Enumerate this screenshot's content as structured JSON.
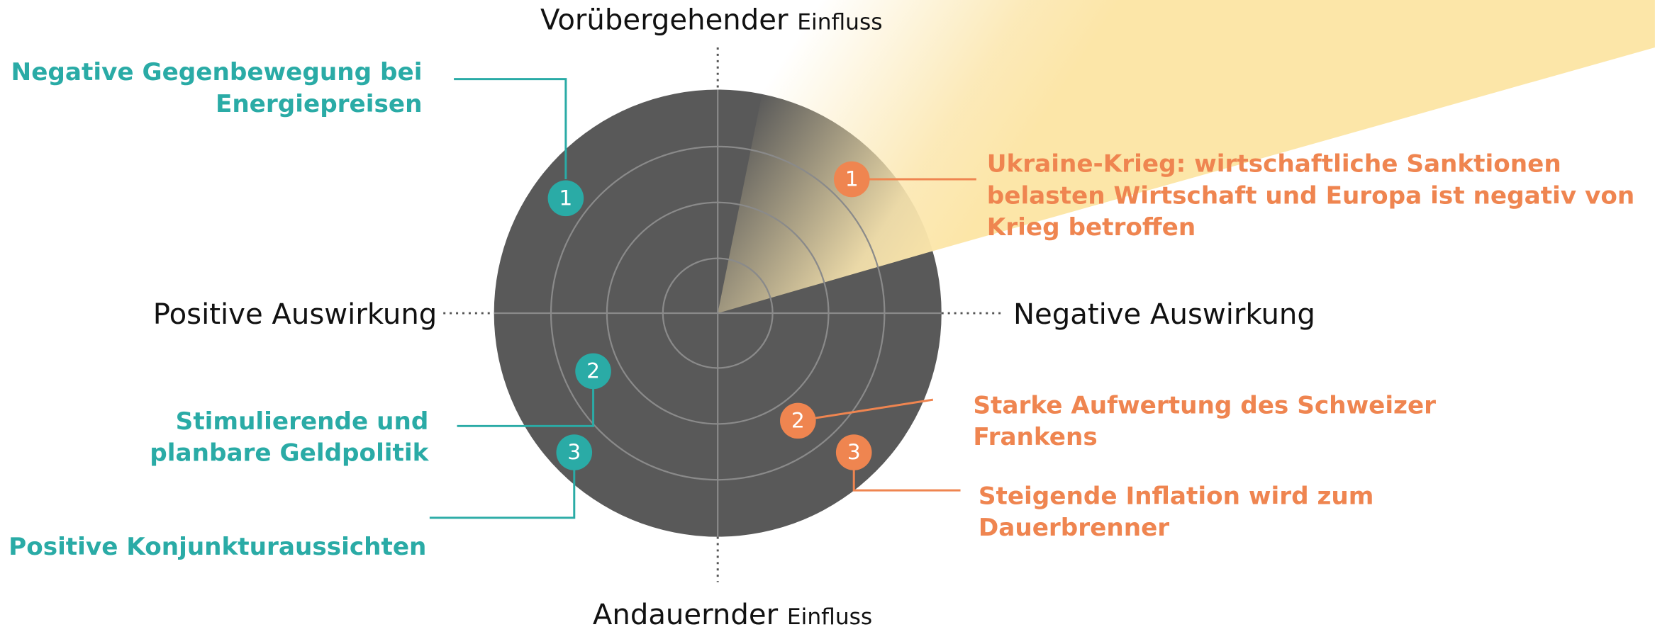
{
  "axes": {
    "top": {
      "main": "Vorübergehender",
      "sub": "Einfluss"
    },
    "bottom": {
      "main": "Andauernder",
      "sub": "Einfluss"
    },
    "left": "Positive Auswirkung",
    "right": "Negative Auswirkung"
  },
  "positive_items": [
    {
      "number": "1",
      "lines": [
        "Negative Gegenbewegung bei",
        "Energiepreisen"
      ]
    },
    {
      "number": "2",
      "lines": [
        "Stimulierende und",
        "planbare Geldpolitik"
      ]
    },
    {
      "number": "3",
      "lines": [
        "Positive Konjunkturaussichten"
      ]
    }
  ],
  "negative_items": [
    {
      "number": "1",
      "lines": [
        "Ukraine-Krieg: wirtschaftliche Sanktionen",
        "belasten Wirtschaft und Europa ist negativ von",
        "Krieg betroffen"
      ]
    },
    {
      "number": "2",
      "lines": [
        "Starke Aufwertung des Schweizer",
        "Frankens"
      ]
    },
    {
      "number": "3",
      "lines": [
        "Steigende Inflation wird zum",
        "Dauerbrenner"
      ]
    }
  ]
}
